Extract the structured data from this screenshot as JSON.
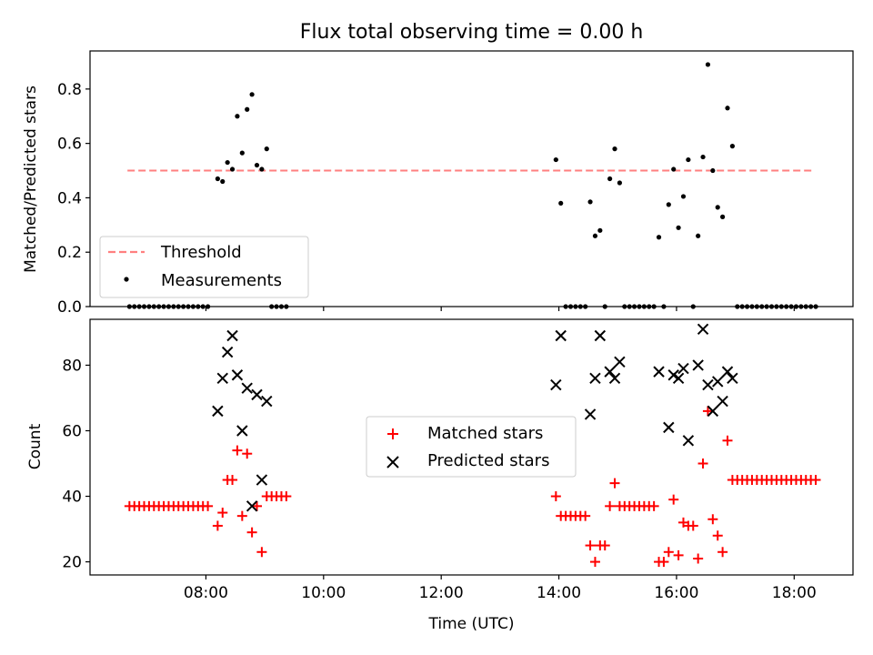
{
  "chart_data": [
    {
      "type": "scatter",
      "title": "Flux total observing time = 0.00 h",
      "xlabel": "",
      "ylabel": "Matched/Predicted stars",
      "xlim_hours": [
        6.03,
        19.0
      ],
      "ylim": [
        0.0,
        0.94
      ],
      "yticks": [
        0.0,
        0.2,
        0.4,
        0.6,
        0.8
      ],
      "ytick_labels": [
        "0.0",
        "0.2",
        "0.4",
        "0.6",
        "0.8"
      ],
      "legend": {
        "position": "lower-left",
        "entries": [
          {
            "label": "Threshold",
            "style": "dashed-line",
            "color": "#ff7f7f"
          },
          {
            "label": "Measurements",
            "style": "dot",
            "color": "#000000"
          }
        ]
      },
      "threshold": {
        "y": 0.5,
        "x_range": [
          "06:40",
          "18:20"
        ],
        "color": "#ff7f7f"
      },
      "series": [
        {
          "name": "Measurements",
          "color": "#000000",
          "points": [
            [
              "06:42",
              0
            ],
            [
              "06:47",
              0
            ],
            [
              "06:52",
              0
            ],
            [
              "06:57",
              0
            ],
            [
              "07:02",
              0
            ],
            [
              "07:07",
              0
            ],
            [
              "07:12",
              0
            ],
            [
              "07:17",
              0
            ],
            [
              "07:22",
              0
            ],
            [
              "07:27",
              0
            ],
            [
              "07:32",
              0
            ],
            [
              "07:37",
              0
            ],
            [
              "07:42",
              0
            ],
            [
              "07:47",
              0
            ],
            [
              "07:52",
              0
            ],
            [
              "07:57",
              0
            ],
            [
              "08:02",
              0
            ],
            [
              "08:12",
              0.47
            ],
            [
              "08:17",
              0.46
            ],
            [
              "08:22",
              0.53
            ],
            [
              "08:27",
              0.505
            ],
            [
              "08:32",
              0.7
            ],
            [
              "08:37",
              0.565
            ],
            [
              "08:42",
              0.725
            ],
            [
              "08:47",
              0.78
            ],
            [
              "08:52",
              0.52
            ],
            [
              "08:57",
              0.505
            ],
            [
              "09:02",
              0.58
            ],
            [
              "09:07",
              0
            ],
            [
              "09:12",
              0
            ],
            [
              "09:17",
              0
            ],
            [
              "09:22",
              0
            ],
            [
              "13:57",
              0.54
            ],
            [
              "14:02",
              0.38
            ],
            [
              "14:07",
              0
            ],
            [
              "14:12",
              0
            ],
            [
              "14:17",
              0
            ],
            [
              "14:22",
              0
            ],
            [
              "14:27",
              0
            ],
            [
              "14:32",
              0.385
            ],
            [
              "14:37",
              0.26
            ],
            [
              "14:42",
              0.28
            ],
            [
              "14:47",
              0
            ],
            [
              "14:52",
              0.47
            ],
            [
              "14:57",
              0.58
            ],
            [
              "15:02",
              0.455
            ],
            [
              "15:07",
              0
            ],
            [
              "15:12",
              0
            ],
            [
              "15:17",
              0
            ],
            [
              "15:22",
              0
            ],
            [
              "15:27",
              0
            ],
            [
              "15:32",
              0
            ],
            [
              "15:37",
              0
            ],
            [
              "15:42",
              0.255
            ],
            [
              "15:47",
              0
            ],
            [
              "15:52",
              0.375
            ],
            [
              "15:57",
              0.505
            ],
            [
              "16:02",
              0.29
            ],
            [
              "16:07",
              0.405
            ],
            [
              "16:12",
              0.54
            ],
            [
              "16:17",
              0
            ],
            [
              "16:22",
              0.26
            ],
            [
              "16:27",
              0.55
            ],
            [
              "16:32",
              0.89
            ],
            [
              "16:37",
              0.5
            ],
            [
              "16:42",
              0.365
            ],
            [
              "16:47",
              0.33
            ],
            [
              "16:52",
              0.73
            ],
            [
              "16:57",
              0.59
            ],
            [
              "17:02",
              0
            ],
            [
              "17:07",
              0
            ],
            [
              "17:12",
              0
            ],
            [
              "17:17",
              0
            ],
            [
              "17:22",
              0
            ],
            [
              "17:27",
              0
            ],
            [
              "17:32",
              0
            ],
            [
              "17:37",
              0
            ],
            [
              "17:42",
              0
            ],
            [
              "17:47",
              0
            ],
            [
              "17:52",
              0
            ],
            [
              "17:57",
              0
            ],
            [
              "18:02",
              0
            ],
            [
              "18:07",
              0
            ],
            [
              "18:12",
              0
            ],
            [
              "18:17",
              0
            ],
            [
              "18:22",
              0
            ]
          ]
        }
      ]
    },
    {
      "type": "scatter",
      "title": "",
      "xlabel": "Time (UTC)",
      "ylabel": "Count",
      "xlim_hours": [
        6.03,
        19.0
      ],
      "ylim": [
        16,
        94
      ],
      "yticks": [
        20,
        40,
        60,
        80
      ],
      "ytick_labels": [
        "20",
        "40",
        "60",
        "80"
      ],
      "xticks": [
        "08:00",
        "10:00",
        "12:00",
        "14:00",
        "16:00",
        "18:00"
      ],
      "legend": {
        "position": "center",
        "entries": [
          {
            "label": "Matched stars",
            "style": "plus",
            "color": "#ff0000"
          },
          {
            "label": "Predicted stars",
            "style": "x",
            "color": "#000000"
          }
        ]
      },
      "series": [
        {
          "name": "Matched stars",
          "marker": "plus",
          "color": "#ff0000",
          "points": [
            [
              "06:42",
              37
            ],
            [
              "06:47",
              37
            ],
            [
              "06:52",
              37
            ],
            [
              "06:57",
              37
            ],
            [
              "07:02",
              37
            ],
            [
              "07:07",
              37
            ],
            [
              "07:12",
              37
            ],
            [
              "07:17",
              37
            ],
            [
              "07:22",
              37
            ],
            [
              "07:27",
              37
            ],
            [
              "07:32",
              37
            ],
            [
              "07:37",
              37
            ],
            [
              "07:42",
              37
            ],
            [
              "07:47",
              37
            ],
            [
              "07:52",
              37
            ],
            [
              "07:57",
              37
            ],
            [
              "08:02",
              37
            ],
            [
              "08:12",
              31
            ],
            [
              "08:17",
              35
            ],
            [
              "08:22",
              45
            ],
            [
              "08:27",
              45
            ],
            [
              "08:32",
              54
            ],
            [
              "08:37",
              34
            ],
            [
              "08:42",
              53
            ],
            [
              "08:47",
              29
            ],
            [
              "08:52",
              37
            ],
            [
              "08:57",
              23
            ],
            [
              "09:02",
              40
            ],
            [
              "09:07",
              40
            ],
            [
              "09:12",
              40
            ],
            [
              "09:17",
              40
            ],
            [
              "09:22",
              40
            ],
            [
              "13:57",
              40
            ],
            [
              "14:02",
              34
            ],
            [
              "14:07",
              34
            ],
            [
              "14:12",
              34
            ],
            [
              "14:17",
              34
            ],
            [
              "14:22",
              34
            ],
            [
              "14:27",
              34
            ],
            [
              "14:32",
              25
            ],
            [
              "14:37",
              20
            ],
            [
              "14:42",
              25
            ],
            [
              "14:47",
              25
            ],
            [
              "14:52",
              37
            ],
            [
              "14:57",
              44
            ],
            [
              "15:02",
              37
            ],
            [
              "15:07",
              37
            ],
            [
              "15:12",
              37
            ],
            [
              "15:17",
              37
            ],
            [
              "15:22",
              37
            ],
            [
              "15:27",
              37
            ],
            [
              "15:32",
              37
            ],
            [
              "15:37",
              37
            ],
            [
              "15:42",
              20
            ],
            [
              "15:47",
              20
            ],
            [
              "15:52",
              23
            ],
            [
              "15:57",
              39
            ],
            [
              "16:02",
              22
            ],
            [
              "16:07",
              32
            ],
            [
              "16:12",
              31
            ],
            [
              "16:17",
              31
            ],
            [
              "16:22",
              21
            ],
            [
              "16:27",
              50
            ],
            [
              "16:32",
              66
            ],
            [
              "16:37",
              33
            ],
            [
              "16:42",
              28
            ],
            [
              "16:47",
              23
            ],
            [
              "16:52",
              57
            ],
            [
              "16:57",
              45
            ],
            [
              "17:02",
              45
            ],
            [
              "17:07",
              45
            ],
            [
              "17:12",
              45
            ],
            [
              "17:17",
              45
            ],
            [
              "17:22",
              45
            ],
            [
              "17:27",
              45
            ],
            [
              "17:32",
              45
            ],
            [
              "17:37",
              45
            ],
            [
              "17:42",
              45
            ],
            [
              "17:47",
              45
            ],
            [
              "17:52",
              45
            ],
            [
              "17:57",
              45
            ],
            [
              "18:02",
              45
            ],
            [
              "18:07",
              45
            ],
            [
              "18:12",
              45
            ],
            [
              "18:17",
              45
            ],
            [
              "18:22",
              45
            ]
          ]
        },
        {
          "name": "Predicted stars",
          "marker": "x",
          "color": "#000000",
          "points": [
            [
              "08:12",
              66
            ],
            [
              "08:17",
              76
            ],
            [
              "08:22",
              84
            ],
            [
              "08:27",
              89
            ],
            [
              "08:32",
              77
            ],
            [
              "08:37",
              60
            ],
            [
              "08:42",
              73
            ],
            [
              "08:47",
              37
            ],
            [
              "08:52",
              71
            ],
            [
              "08:57",
              45
            ],
            [
              "09:02",
              69
            ],
            [
              "13:57",
              74
            ],
            [
              "14:02",
              89
            ],
            [
              "14:32",
              65
            ],
            [
              "14:37",
              76
            ],
            [
              "14:42",
              89
            ],
            [
              "14:52",
              78
            ],
            [
              "14:57",
              76
            ],
            [
              "15:02",
              81
            ],
            [
              "15:42",
              78
            ],
            [
              "15:52",
              61
            ],
            [
              "15:57",
              77
            ],
            [
              "16:02",
              76
            ],
            [
              "16:07",
              79
            ],
            [
              "16:12",
              57
            ],
            [
              "16:22",
              80
            ],
            [
              "16:27",
              91
            ],
            [
              "16:32",
              74
            ],
            [
              "16:37",
              66
            ],
            [
              "16:42",
              75
            ],
            [
              "16:47",
              69
            ],
            [
              "16:52",
              78
            ],
            [
              "16:57",
              76
            ]
          ]
        }
      ]
    }
  ]
}
